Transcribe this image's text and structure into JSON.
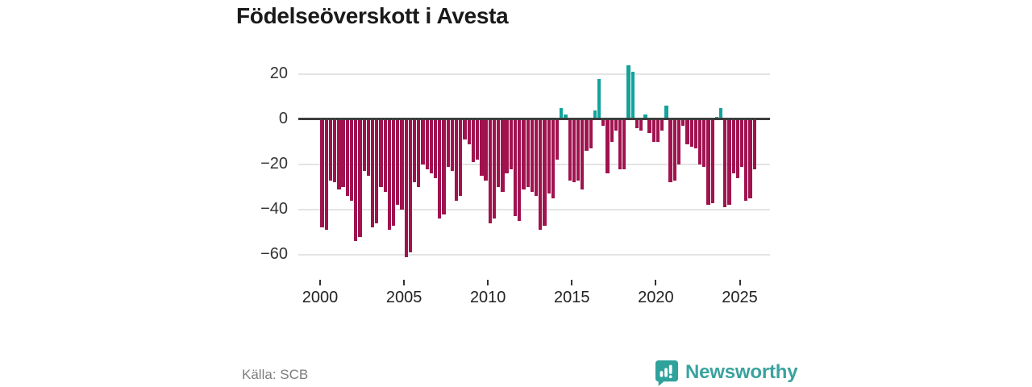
{
  "title": "Födelseöverskott i Avesta",
  "footer": {
    "source": "Källa: SCB",
    "brand": "Newsworthy"
  },
  "chart_data": {
    "type": "bar",
    "title": "Födelseöverskott i Avesta",
    "x_start_year": 2000,
    "periods_per_year": 4,
    "x_tick_labels": [
      "2000",
      "2005",
      "2010",
      "2015",
      "2020",
      "2025"
    ],
    "y_ticks": [
      20,
      0,
      -20,
      -40,
      -60
    ],
    "y_tick_labels": [
      "20",
      "0",
      "−20",
      "−40",
      "−60"
    ],
    "ylim": [
      -65,
      27
    ],
    "grid": true,
    "legend": "none",
    "positive_color": "#14a39a",
    "negative_color": "#a0134f",
    "values": [
      -48,
      -49,
      -27,
      -28,
      -31,
      -30,
      -34,
      -36,
      -54,
      -52,
      -23,
      -25,
      -48,
      -46,
      -30,
      -32,
      -49,
      -47,
      -38,
      -40,
      -61,
      -59,
      -28,
      -30,
      -20,
      -22,
      -24,
      -26,
      -44,
      -42,
      -21,
      -23,
      -36,
      -34,
      -9,
      -11,
      -19,
      -18,
      -25,
      -27,
      -46,
      -44,
      -30,
      -32,
      -24,
      -22,
      -43,
      -45,
      -31,
      -30,
      -32,
      -34,
      -49,
      -47,
      -33,
      -35,
      -18,
      5,
      2,
      -27,
      -28,
      -27,
      -31,
      -14,
      -13,
      4,
      18,
      -3,
      -24,
      -10,
      -5,
      -22,
      -22,
      24,
      21,
      -4,
      -5,
      2,
      -6,
      -10,
      -10,
      -5,
      6,
      -28,
      -27,
      -20,
      -3,
      -11,
      -12,
      -13,
      -20,
      -21,
      -38,
      -37,
      1,
      5,
      -39,
      -38,
      -24,
      -26,
      -21,
      -36,
      -35,
      -22
    ]
  }
}
